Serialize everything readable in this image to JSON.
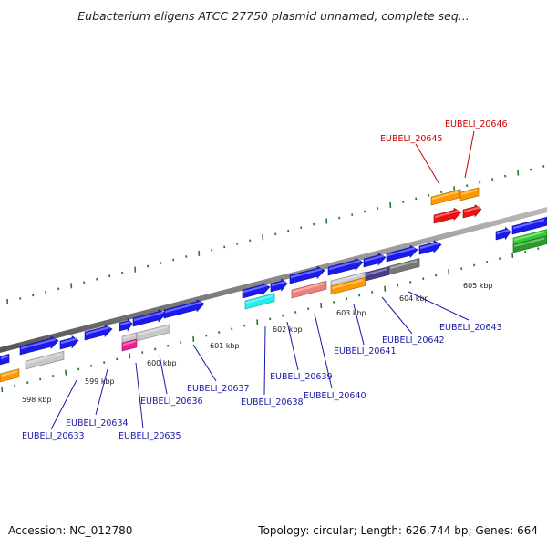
{
  "title": "Eubacterium eligens ATCC 27750 plasmid unnamed, complete seq...",
  "footer": {
    "accession": "Accession: NC_012780",
    "summary": "Topology: circular; Length: 626,744 bp; Genes: 664"
  },
  "colors": {
    "cds_forward": "#1a1aee",
    "backbone": "#888888",
    "tick": "#2a7a2a",
    "label_blue": "#1a1aa8",
    "label_red": "#cc0000",
    "orange": "#ff9900",
    "red": "#ee1111",
    "cyan": "#22eeee",
    "pink": "#ee7f7f",
    "gray": "#c8c8c8",
    "dark_gray": "#777777",
    "purple": "#4a3a8a",
    "magenta": "#ee1f8f",
    "green": "#33cc33"
  },
  "scale_labels": [
    "598 kbp",
    "599 kbp",
    "600 kbp",
    "601 kbp",
    "602 kbp",
    "603 kbp",
    "604 kbp",
    "605 kbp"
  ],
  "gene_labels": {
    "g20633": "EUBELI_20633",
    "g20634": "EUBELI_20634",
    "g20635": "EUBELI_20635",
    "g20636": "EUBELI_20636",
    "g20637": "EUBELI_20637",
    "g20638": "EUBELI_20638",
    "g20639": "EUBELI_20639",
    "g20640": "EUBELI_20640",
    "g20641": "EUBELI_20641",
    "g20642": "EUBELI_20642",
    "g20643": "EUBELI_20643",
    "g20645": "EUBELI_20645",
    "g20646": "EUBELI_20646"
  }
}
